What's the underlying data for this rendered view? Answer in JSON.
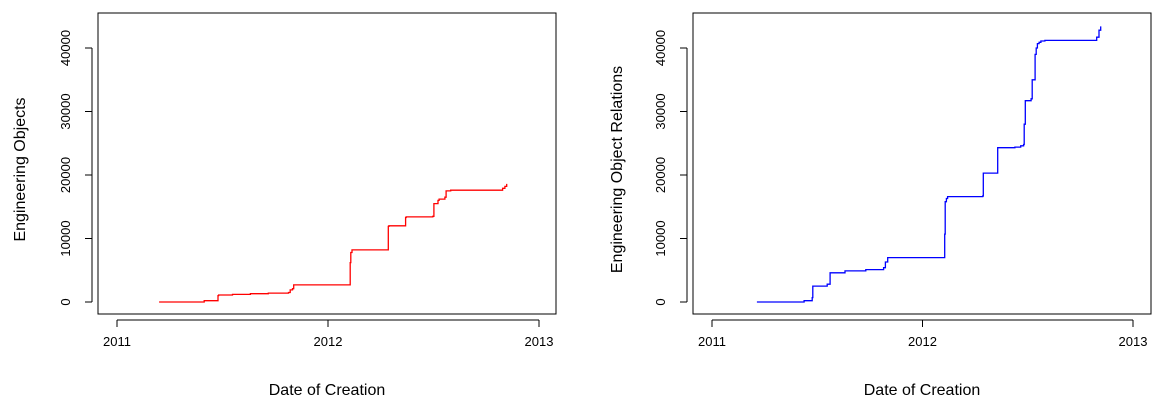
{
  "chart_data": [
    {
      "type": "line",
      "step": true,
      "title": "",
      "xlabel": "Date of Creation",
      "ylabel": "Engineering Objects",
      "xlim": [
        "2011-01-01",
        "2013-01-01"
      ],
      "ylim": [
        0,
        44000
      ],
      "x_ticks": [
        "2011",
        "2012",
        "2013"
      ],
      "y_ticks": [
        0,
        10000,
        20000,
        30000,
        40000
      ],
      "grid": false,
      "color": "#ff0000",
      "series": [
        {
          "x": [
            "2011-03-15",
            "2011-06-01",
            "2011-06-25",
            "2011-06-26",
            "2011-07-20",
            "2011-08-20",
            "2011-09-20",
            "2011-10-25",
            "2011-10-28",
            "2011-11-01",
            "2011-11-03",
            "2012-02-08",
            "2012-02-09",
            "2012-02-10",
            "2012-02-12",
            "2012-02-14",
            "2012-04-15",
            "2012-04-16",
            "2012-05-15",
            "2012-05-16",
            "2012-07-01",
            "2012-07-03",
            "2012-07-10",
            "2012-07-12",
            "2012-07-22",
            "2012-07-24",
            "2012-08-01",
            "2012-10-25",
            "2012-10-30",
            "2012-11-03",
            "2012-11-06"
          ],
          "y": [
            0,
            200,
            1000,
            1100,
            1200,
            1300,
            1400,
            1500,
            1900,
            2100,
            2700,
            2700,
            6200,
            7800,
            8200,
            8200,
            11900,
            12000,
            13300,
            13400,
            13500,
            15500,
            16000,
            16200,
            16500,
            17500,
            17600,
            17600,
            17900,
            18200,
            18600
          ]
        }
      ]
    },
    {
      "type": "line",
      "step": true,
      "title": "",
      "xlabel": "Date of Creation",
      "ylabel": "Engineering Object Relations",
      "xlim": [
        "2011-01-01",
        "2013-01-01"
      ],
      "ylim": [
        0,
        44000
      ],
      "x_ticks": [
        "2011",
        "2012",
        "2013"
      ],
      "y_ticks": [
        0,
        10000,
        20000,
        30000,
        40000
      ],
      "grid": false,
      "color": "#0000ff",
      "series": [
        {
          "x": [
            "2011-03-20",
            "2011-06-10",
            "2011-06-24",
            "2011-06-25",
            "2011-07-20",
            "2011-07-25",
            "2011-08-20",
            "2011-09-25",
            "2011-10-26",
            "2011-10-29",
            "2011-11-02",
            "2012-02-08",
            "2012-02-09",
            "2012-02-10",
            "2012-02-12",
            "2012-02-14",
            "2012-04-15",
            "2012-04-16",
            "2012-05-10",
            "2012-05-11",
            "2012-06-10",
            "2012-06-20",
            "2012-06-25",
            "2012-06-26",
            "2012-06-28",
            "2012-07-08",
            "2012-07-10",
            "2012-07-15",
            "2012-07-17",
            "2012-07-19",
            "2012-07-22",
            "2012-07-25",
            "2012-08-01",
            "2012-10-25",
            "2012-10-30",
            "2012-11-03",
            "2012-11-06"
          ],
          "y": [
            0,
            200,
            700,
            2500,
            2800,
            4600,
            4900,
            5100,
            5400,
            6300,
            7000,
            7000,
            10700,
            15800,
            16300,
            16600,
            16700,
            20300,
            20300,
            24300,
            24400,
            24600,
            24800,
            28000,
            31700,
            32000,
            35000,
            39000,
            40000,
            40700,
            40900,
            41100,
            41200,
            41200,
            41700,
            42800,
            43400
          ]
        }
      ]
    }
  ]
}
